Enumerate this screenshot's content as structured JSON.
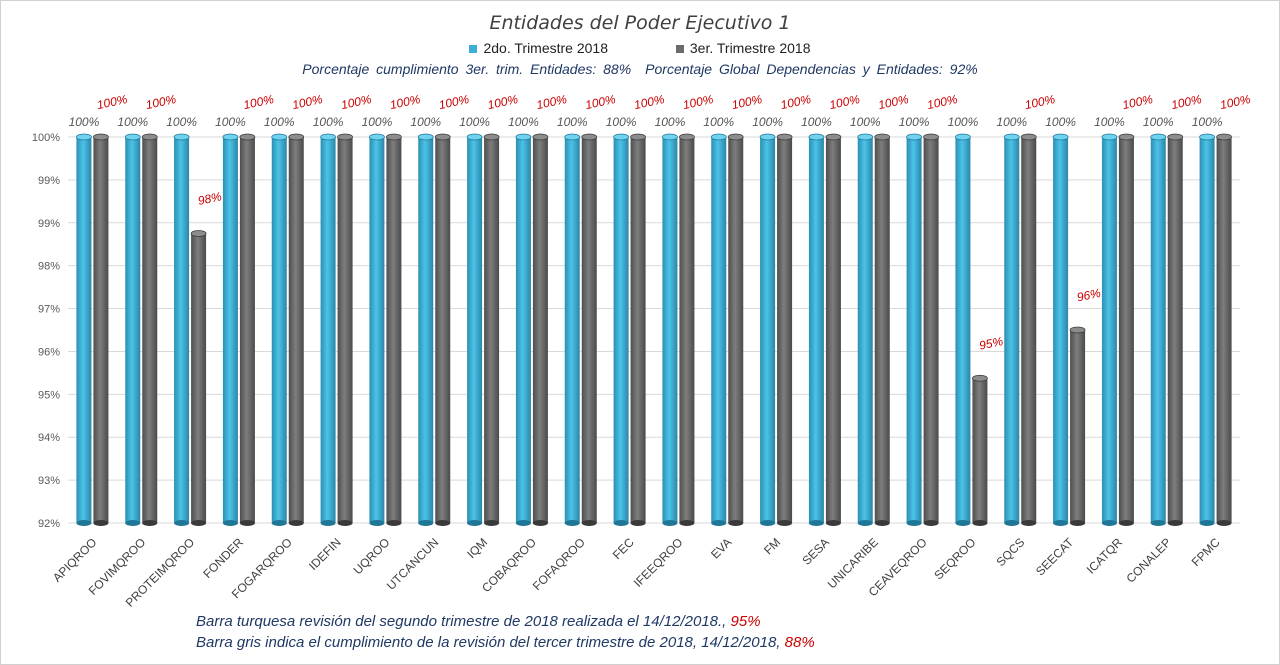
{
  "chart_data": {
    "type": "bar",
    "title": "Entidades del Poder Ejecutivo 1",
    "categories": [
      "APIQROO",
      "FOVIMQROO",
      "PROTEIMQROO",
      "FONDER",
      "FOGARQROO",
      "IDEFIN",
      "UQROO",
      "UTCANCUN",
      "IQM",
      "COBAQROO",
      "FOFAQROO",
      "FEC",
      "IFEEQROO",
      "EVA",
      "FM",
      "SESA",
      "UNICARIBE",
      "CEAVEQROO",
      "SEQROO",
      "SQCS",
      "SEECAT",
      "ICATQR",
      "CONALEP",
      "FPMC"
    ],
    "series": [
      {
        "name": "2do. Trimestre 2018",
        "color": "#3db0d6",
        "values": [
          100,
          100,
          100,
          100,
          100,
          100,
          100,
          100,
          100,
          100,
          100,
          100,
          100,
          100,
          100,
          100,
          100,
          100,
          100,
          100,
          100,
          100,
          100,
          100
        ],
        "labels": [
          "100%",
          "100%",
          "100%",
          "100%",
          "100%",
          "100%",
          "100%",
          "100%",
          "100%",
          "100%",
          "100%",
          "100%",
          "100%",
          "100%",
          "100%",
          "100%",
          "100%",
          "100%",
          "100%",
          "100%",
          "100%",
          "100%",
          "100%",
          "100%"
        ]
      },
      {
        "name": "3er. Trimestre 2018",
        "color": "#6b6b6b",
        "values": [
          100,
          100,
          98,
          100,
          100,
          100,
          100,
          100,
          100,
          100,
          100,
          100,
          100,
          100,
          100,
          100,
          100,
          100,
          95,
          100,
          96,
          100,
          100,
          100
        ],
        "labels": [
          "100%",
          "100%",
          "98%",
          "100%",
          "100%",
          "100%",
          "100%",
          "100%",
          "100%",
          "100%",
          "100%",
          "100%",
          "100%",
          "100%",
          "100%",
          "100%",
          "100%",
          "100%",
          "95%",
          "100%",
          "96%",
          "100%",
          "100%",
          "100%"
        ]
      }
    ],
    "yticks": [
      "92%",
      "93%",
      "94%",
      "95%",
      "96%",
      "97%",
      "98%",
      "99%",
      "99%",
      "100%"
    ],
    "ylim": [
      92,
      100
    ],
    "grid": true,
    "legend": "top-center",
    "xlabel": "",
    "ylabel": ""
  },
  "header": {
    "subtitle_left": "Porcentaje cumplimiento 3er. trim. Entidades: 88%",
    "subtitle_right": "Porcentaje Global Dependencias y Entidades: 92%"
  },
  "notes": {
    "line1_text": "Barra turquesa revisión del segundo trimestre de 2018 realizada el 14/12/2018.,",
    "line1_value": "95%",
    "line2_text": "Barra gris indica el cumplimiento de la revisión del tercer trimestre de 2018, 14/12/2018,",
    "line2_value": "88%"
  },
  "colors": {
    "label_red": "#cc0000",
    "label_gray": "#555555",
    "note_blue": "#1f3864"
  }
}
